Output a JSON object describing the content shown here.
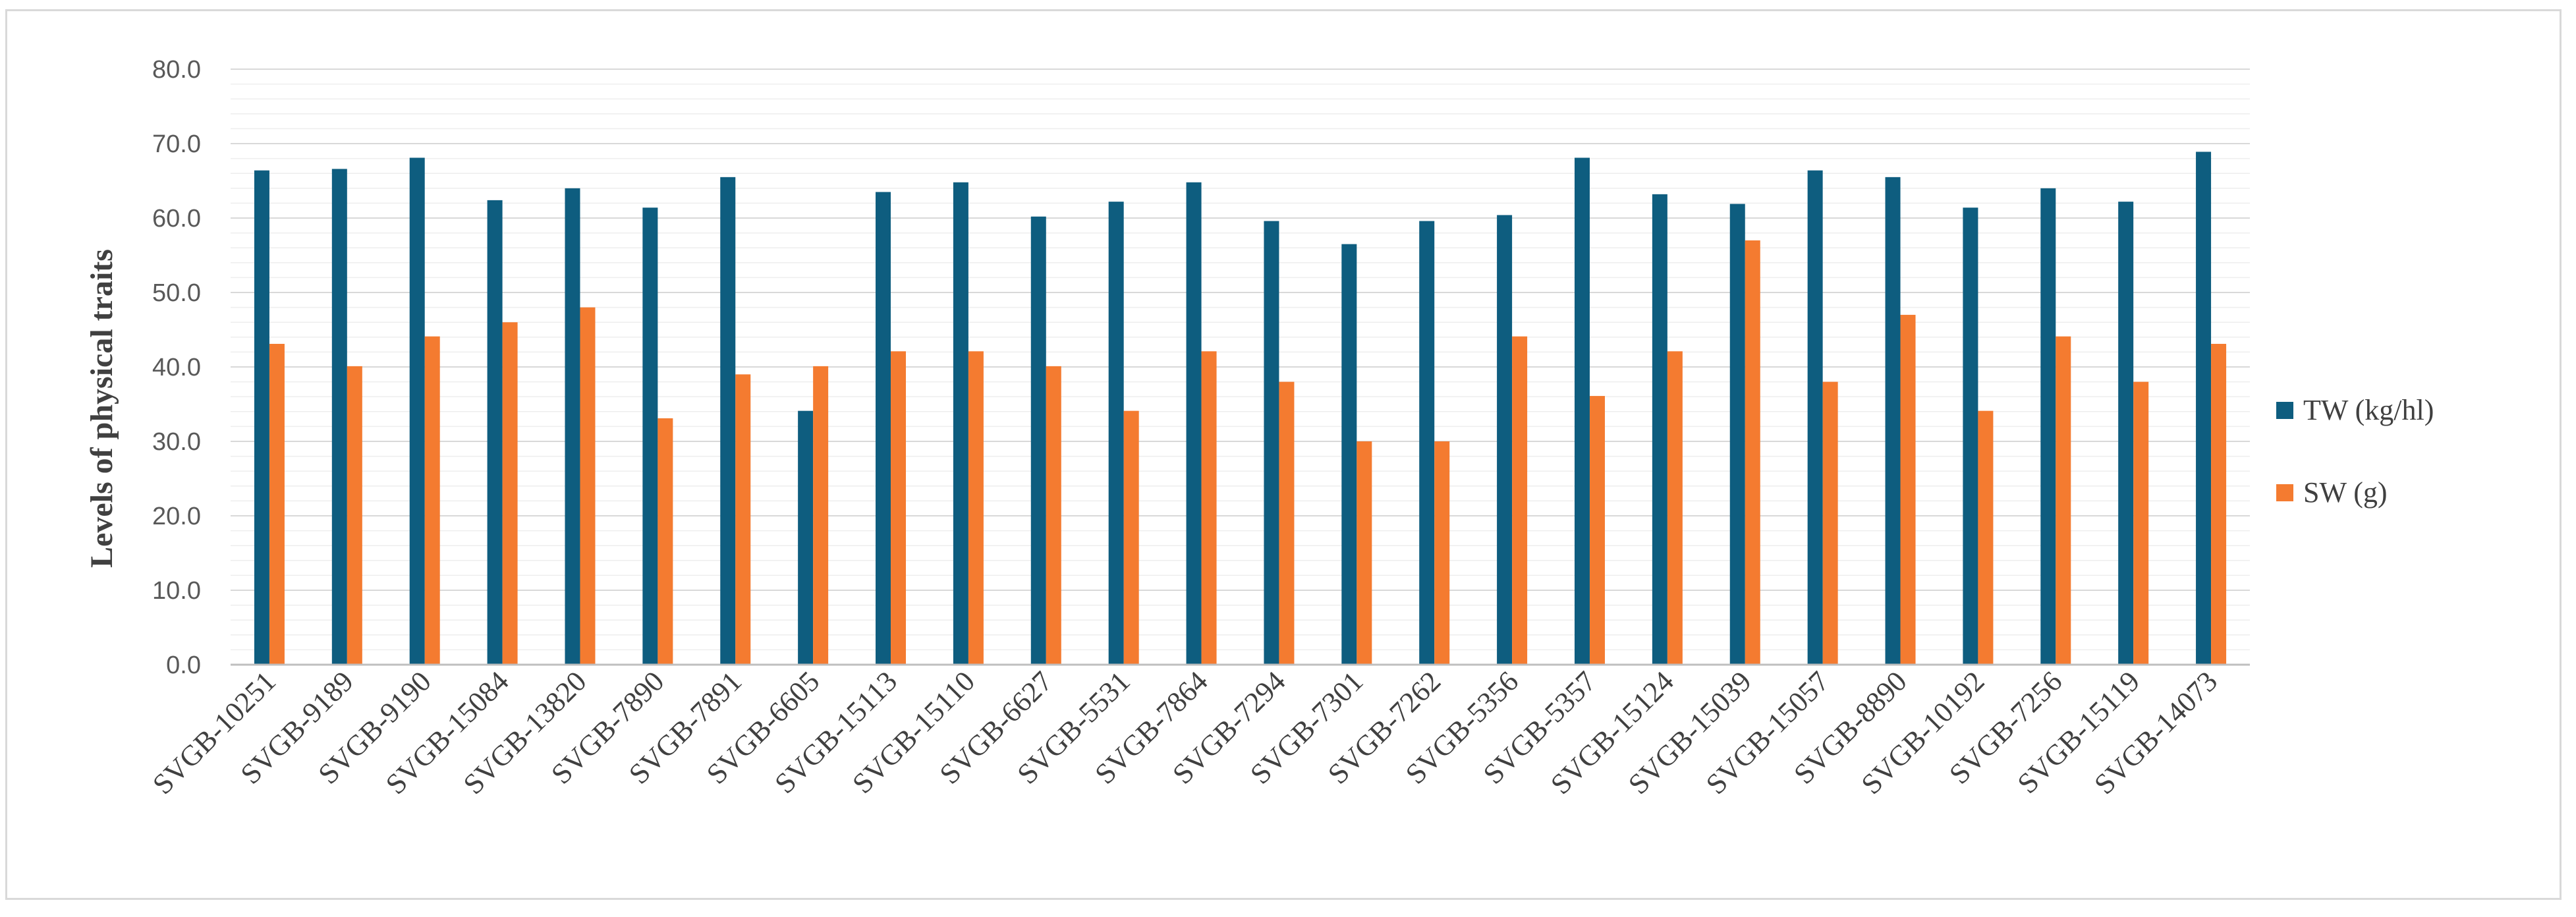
{
  "chart_data": {
    "type": "bar",
    "title": "",
    "xlabel": "",
    "ylabel": "Levels of  physical traits",
    "ylim": [
      0,
      80
    ],
    "yticks": [
      "0.0",
      "10.0",
      "20.0",
      "30.0",
      "40.0",
      "50.0",
      "60.0",
      "70.0",
      "80.0"
    ],
    "grid": true,
    "legend_position": "right",
    "categories": [
      "SVGB-10251",
      "SVGB-9189",
      "SVGB-9190",
      "SVGB-15084",
      "SVGB-13820",
      "SVGB-7890",
      "SVGB-7891",
      "SVGB-6605",
      "SVGB-15113",
      "SVGB-15110",
      "SVGB-6627",
      "SVGB-5531",
      "SVGB-7864",
      "SVGB-7294",
      "SVGB-7301",
      "SVGB-7262",
      "SVGB-5356",
      "SVGB-5357",
      "SVGB-15124",
      "SVGB-15039",
      "SVGB-15057",
      "SVGB-8890",
      "SVGB-10192",
      "SVGB-7256",
      "SVGB-15119",
      "SVGB-14073"
    ],
    "series": [
      {
        "name": "TW (kg/hl)",
        "color": "#0e5d7f",
        "values": [
          66.4,
          66.6,
          68.1,
          62.4,
          64.0,
          61.4,
          65.5,
          34.1,
          63.5,
          64.8,
          60.2,
          62.2,
          64.8,
          59.6,
          56.5,
          59.6,
          60.4,
          68.1,
          63.2,
          61.9,
          66.4,
          65.5,
          61.4,
          64.0,
          62.2,
          68.9
        ]
      },
      {
        "name": "SW (g)",
        "color": "#f47b30",
        "values": [
          43.1,
          40.1,
          44.1,
          46.0,
          48.0,
          33.1,
          39.0,
          40.1,
          42.1,
          42.1,
          40.1,
          34.1,
          42.1,
          38.0,
          30.0,
          30.0,
          44.1,
          36.1,
          42.1,
          57.0,
          38.0,
          47.0,
          34.1,
          44.1,
          38.0,
          43.1
        ]
      }
    ]
  }
}
